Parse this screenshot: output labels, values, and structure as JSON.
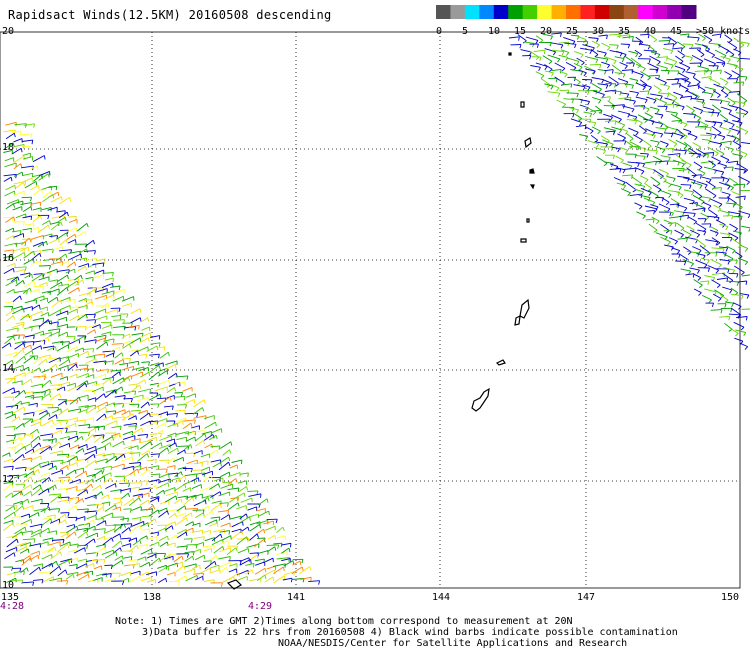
{
  "title": "Rapidsact Winds(12.5KM) 20160508 descending",
  "legend": {
    "labels": [
      "0",
      "5",
      "10",
      "15",
      "20",
      "25",
      "30",
      "35",
      "40",
      "45",
      ">50 knots"
    ],
    "colors": [
      "#555555",
      "#9a9a9a",
      "#00e0ff",
      "#0088ff",
      "#0000cc",
      "#00a000",
      "#44d000",
      "#ffff30",
      "#ffb000",
      "#ff7000",
      "#ff2020",
      "#d00000",
      "#8b4513",
      "#b06030",
      "#ff00ff",
      "#d000d0",
      "#9000b0",
      "#500080"
    ]
  },
  "map": {
    "lat_labels": [
      "20",
      "18",
      "16",
      "14",
      "12",
      "10"
    ],
    "lon_labels": [
      "135",
      "138",
      "141",
      "144",
      "147",
      "150"
    ],
    "time_labels": [
      "4:28",
      "4:29"
    ],
    "land_color": "#000000",
    "gridline_style": "dotted"
  },
  "notes": {
    "line1": "Note: 1) Times are GMT 2)Times along bottom correspond to measurement at 20N",
    "line2": "3)Data buffer is 22 hrs from 20160508 4) Black wind barbs indicate possible contamination",
    "line3": "NOAA/NESDIS/Center for Satellite Applications and Research"
  }
}
